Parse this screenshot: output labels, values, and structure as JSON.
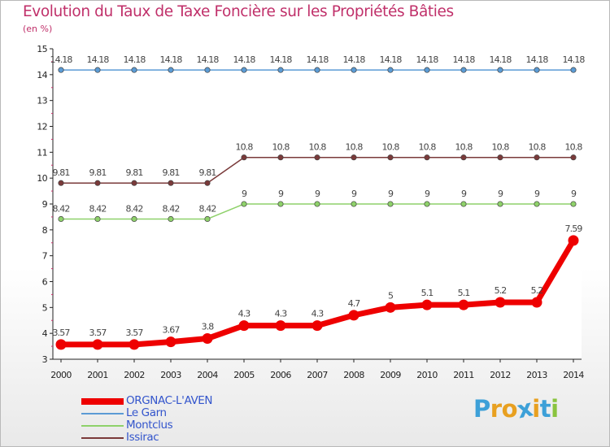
{
  "title": "Evolution du Taux de Taxe Foncière sur les Propriétés Bâties",
  "unit_label": "(en %)",
  "logo": {
    "letters": [
      "P",
      "r",
      "o",
      "x",
      "i",
      "t",
      "i"
    ],
    "colors": [
      "#3da0d8",
      "#e8a020",
      "#e8a020",
      "#3da0d8",
      "#e8a020",
      "#3da0d8",
      "#8ac43f"
    ]
  },
  "chart_data": {
    "type": "line",
    "title": "Evolution du Taux de Taxe Foncière sur les Propriétés Bâties",
    "ylabel": "(en %)",
    "xlabel": "",
    "x": [
      "2000",
      "2001",
      "2002",
      "2003",
      "2004",
      "2005",
      "2006",
      "2007",
      "2008",
      "2009",
      "2010",
      "2011",
      "2012",
      "2013",
      "2014"
    ],
    "ylim": [
      3,
      15
    ],
    "yticks": [
      3,
      4,
      5,
      6,
      7,
      8,
      9,
      10,
      11,
      12,
      13,
      14,
      15
    ],
    "legend_position": "bottom-left",
    "series": [
      {
        "name": "ORGNAC-L'AVEN",
        "color": "#ee0000",
        "emphasis": true,
        "values": [
          3.57,
          3.57,
          3.57,
          3.67,
          3.8,
          4.3,
          4.3,
          4.3,
          4.7,
          5,
          5.1,
          5.1,
          5.2,
          5.2,
          7.59
        ],
        "labels": [
          "3.57",
          "3.57",
          "3.57",
          "3.67",
          "3.8",
          "4.3",
          "4.3",
          "4.3",
          "4.7",
          "5",
          "5.1",
          "5.1",
          "5.2",
          "5.2",
          "7.59"
        ]
      },
      {
        "name": "Le Garn",
        "color": "#5b9bd5",
        "emphasis": false,
        "values": [
          14.18,
          14.18,
          14.18,
          14.18,
          14.18,
          14.18,
          14.18,
          14.18,
          14.18,
          14.18,
          14.18,
          14.18,
          14.18,
          14.18,
          14.18
        ],
        "labels": [
          "14.18",
          "14.18",
          "14.18",
          "14.18",
          "14.18",
          "14.18",
          "14.18",
          "14.18",
          "14.18",
          "14.18",
          "14.18",
          "14.18",
          "14.18",
          "14.18",
          "14.18"
        ]
      },
      {
        "name": "Montclus",
        "color": "#8ed16a",
        "emphasis": false,
        "values": [
          8.42,
          8.42,
          8.42,
          8.42,
          8.42,
          9,
          9,
          9,
          9,
          9,
          9,
          9,
          9,
          9,
          9
        ],
        "labels": [
          "8.42",
          "8.42",
          "8.42",
          "8.42",
          "8.42",
          "9",
          "9",
          "9",
          "9",
          "9",
          "9",
          "9",
          "9",
          "9",
          "9"
        ]
      },
      {
        "name": "Issirac",
        "color": "#7a3a3a",
        "emphasis": false,
        "values": [
          9.81,
          9.81,
          9.81,
          9.81,
          9.81,
          10.8,
          10.8,
          10.8,
          10.8,
          10.8,
          10.8,
          10.8,
          10.8,
          10.8,
          10.8
        ],
        "labels": [
          "9.81",
          "9.81",
          "9.81",
          "9.81",
          "9.81",
          "10.8",
          "10.8",
          "10.8",
          "10.8",
          "10.8",
          "10.8",
          "10.8",
          "10.8",
          "10.8",
          "10.8"
        ]
      }
    ]
  }
}
